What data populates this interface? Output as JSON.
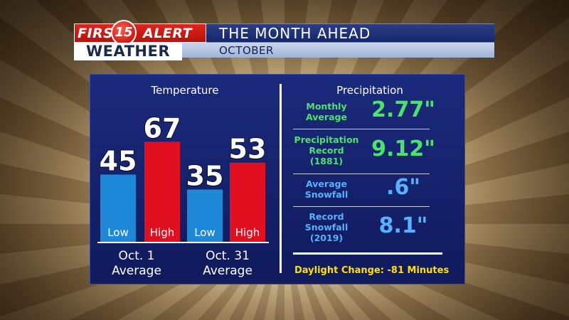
{
  "header": {
    "logo_first": "FIRST",
    "logo_number": "15",
    "logo_alert": "ALERT",
    "logo_weather": "WEATHER",
    "title": "THE MONTH AHEAD",
    "subtitle": "OCTOBER"
  },
  "temperature": {
    "title": "Temperature",
    "groups": [
      {
        "label_line1": "Oct. 1",
        "label_line2": "Average"
      },
      {
        "label_line1": "Oct. 31",
        "label_line2": "Average"
      }
    ]
  },
  "precipitation": {
    "title": "Precipitation",
    "rows": [
      {
        "label": [
          "Monthly",
          "Average"
        ],
        "value": "2.77\"",
        "color": "#4be36b"
      },
      {
        "label": [
          "Precipitation",
          "Record",
          "(1881)"
        ],
        "value": "9.12\"",
        "color": "#4be36b"
      },
      {
        "label": [
          "Average",
          "Snowfall"
        ],
        "value": ".6\"",
        "color": "#56b2ff"
      },
      {
        "label": [
          "Record",
          "Snowfall",
          "(2019)"
        ],
        "value": "8.1\"",
        "color": "#56b2ff"
      }
    ],
    "daylight": "Daylight Change:  -81 Minutes"
  },
  "chart_data": {
    "type": "bar",
    "title": "Temperature",
    "categories": [
      "Oct. 1 Average",
      "Oct. 31 Average"
    ],
    "series": [
      {
        "name": "Low",
        "values": [
          45,
          35
        ],
        "color": "#1e88d6"
      },
      {
        "name": "High",
        "values": [
          67,
          53
        ],
        "color": "#e01020"
      }
    ],
    "ylim": [
      0,
      80
    ],
    "grid": false
  }
}
